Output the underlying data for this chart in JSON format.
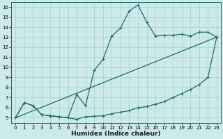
{
  "title": "",
  "xlabel": "Humidex (Indice chaleur)",
  "background_color": "#cceaea",
  "grid_color": "#a8cccc",
  "line_color": "#1a6b6b",
  "xlim": [
    -0.5,
    23.5
  ],
  "ylim": [
    4.5,
    16.5
  ],
  "xticks": [
    0,
    1,
    2,
    3,
    4,
    5,
    6,
    7,
    8,
    9,
    10,
    11,
    12,
    13,
    14,
    15,
    16,
    17,
    18,
    19,
    20,
    21,
    22,
    23
  ],
  "yticks": [
    5,
    6,
    7,
    8,
    9,
    10,
    11,
    12,
    13,
    14,
    15,
    16
  ],
  "series1_x": [
    0,
    1,
    2,
    3,
    4,
    5,
    6,
    7,
    8,
    9,
    10,
    11,
    12,
    13,
    14,
    15,
    16,
    17,
    18,
    19,
    20,
    21,
    22,
    23
  ],
  "series1_y": [
    5.0,
    6.5,
    6.2,
    5.3,
    5.2,
    5.1,
    5.0,
    4.85,
    5.1,
    5.15,
    5.2,
    5.4,
    5.55,
    5.7,
    6.0,
    6.1,
    6.35,
    6.6,
    7.0,
    7.4,
    7.8,
    8.3,
    9.0,
    13.0
  ],
  "series2_x": [
    0,
    1,
    2,
    3,
    4,
    5,
    6,
    7,
    8,
    9,
    10,
    11,
    12,
    13,
    14,
    15,
    16,
    17,
    18,
    19,
    20,
    21,
    22,
    23
  ],
  "series2_y": [
    5.0,
    6.5,
    6.2,
    5.3,
    5.2,
    5.1,
    5.0,
    7.3,
    6.2,
    9.7,
    10.8,
    13.1,
    13.9,
    15.6,
    16.2,
    14.5,
    13.1,
    13.2,
    13.2,
    13.3,
    13.1,
    13.5,
    13.5,
    13.0
  ],
  "series3_x": [
    0,
    23
  ],
  "series3_y": [
    5.0,
    13.0
  ]
}
